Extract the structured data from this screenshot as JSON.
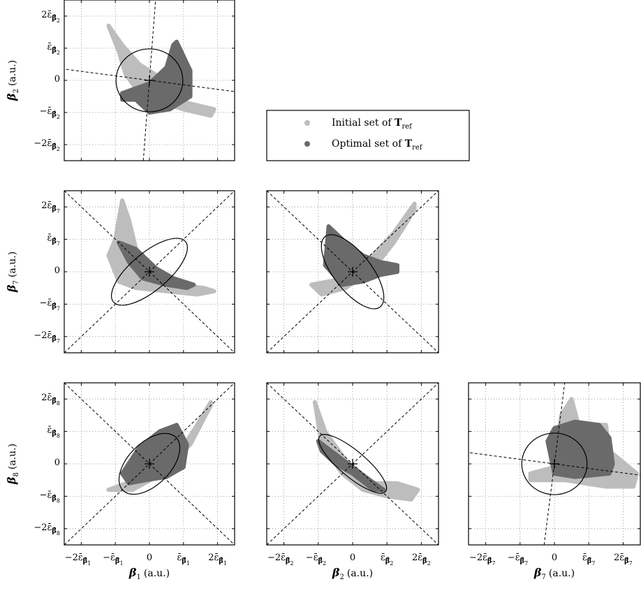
{
  "chart_data": [
    {
      "type": "scatter",
      "panel": "beta2-vs-beta1",
      "xlabel": "",
      "ylabel": "β2 (a.u.)",
      "x_ticks": [],
      "y_ticks": [
        "2ε̄β̂2",
        "ε̄β̂2",
        "0",
        "−ε̄β̂2",
        "−2ε̄β̂2"
      ],
      "xlim": [
        -2.5,
        2.5
      ],
      "ylim": [
        -2.5,
        2.5
      ],
      "series": [
        {
          "name": "Initial set of Tref",
          "color": "#bdbdbd",
          "x": [
            -1.2,
            -0.8,
            -0.3,
            0.3,
            0.8,
            1.1,
            1.9,
            1.8,
            1.0,
            0.4,
            -0.3,
            -0.7,
            -0.9,
            -1.2
          ],
          "y": [
            1.7,
            1.1,
            0.5,
            0.1,
            -0.4,
            -0.7,
            -0.9,
            -1.1,
            -0.9,
            -0.7,
            -0.4,
            0.2,
            0.9,
            1.7
          ]
        },
        {
          "name": "Optimal set of Tref",
          "color": "#6a6a6a",
          "x": [
            -0.8,
            0.0,
            0.5,
            0.7,
            0.8,
            1.2,
            1.2,
            0.6,
            0.0,
            -0.4,
            -0.8,
            -0.8
          ],
          "y": [
            -0.4,
            -0.1,
            0.4,
            1.1,
            1.2,
            0.3,
            -0.5,
            -0.9,
            -1.0,
            -0.6,
            -0.6,
            -0.4
          ]
        }
      ],
      "ellipse": {
        "cx": 0,
        "cy": 0,
        "rx": 0.98,
        "ry": 0.98,
        "angle": 0
      },
      "axes_lines": [
        [
          -5,
          0.7,
          5,
          -0.7
        ],
        [
          -0.18,
          -2.5,
          0.18,
          2.5
        ]
      ],
      "grid": true
    },
    {
      "type": "scatter",
      "panel": "beta7-vs-beta1",
      "xlabel": "",
      "ylabel": "β7 (a.u.)",
      "x_ticks": [],
      "y_ticks": [
        "2ε̄β̂7",
        "ε̄β̂7",
        "0",
        "−ε̄β̂7",
        "−2ε̄β̂7"
      ],
      "xlim": [
        -2.5,
        2.5
      ],
      "ylim": [
        -2.5,
        2.5
      ],
      "series": [
        {
          "name": "Initial set of Tref",
          "color": "#bdbdbd",
          "x": [
            -0.8,
            -0.6,
            -0.3,
            0.2,
            0.8,
            1.6,
            1.9,
            1.4,
            0.5,
            -0.4,
            -0.9,
            -1.2,
            -1.0,
            -0.8
          ],
          "y": [
            2.2,
            1.6,
            0.3,
            -0.4,
            -0.4,
            -0.5,
            -0.6,
            -0.7,
            -0.6,
            -0.5,
            -0.3,
            0.5,
            1.0,
            2.2
          ]
        },
        {
          "name": "Optimal set of Tref",
          "color": "#6a6a6a",
          "x": [
            -0.9,
            -0.4,
            0.2,
            0.7,
            1.3,
            1.1,
            0.5,
            -0.2,
            -0.6,
            -0.9
          ],
          "y": [
            0.9,
            0.7,
            0.1,
            -0.2,
            -0.4,
            -0.5,
            -0.4,
            -0.2,
            0.3,
            0.9
          ]
        }
      ],
      "ellipse": {
        "cx": 0,
        "cy": 0,
        "rx": 1.38,
        "ry": 0.58,
        "angle": -40
      },
      "axes_lines": [
        [
          -2.5,
          -2.5,
          2.5,
          2.5
        ],
        [
          -2.5,
          2.5,
          2.5,
          -2.5
        ]
      ],
      "grid": true
    },
    {
      "type": "scatter",
      "panel": "beta7-vs-beta2",
      "xlabel": "",
      "ylabel": "",
      "x_ticks": [],
      "y_ticks": [],
      "xlim": [
        -2.5,
        2.5
      ],
      "ylim": [
        -2.5,
        2.5
      ],
      "series": [
        {
          "name": "Initial set of Tref",
          "color": "#bdbdbd",
          "x": [
            -1.2,
            -0.2,
            0.5,
            1.2,
            1.8,
            1.8,
            1.2,
            0.6,
            -0.2,
            -0.9,
            -1.2
          ],
          "y": [
            -0.4,
            -0.2,
            0.4,
            1.2,
            2.1,
            1.9,
            0.9,
            0.1,
            -0.5,
            -0.7,
            -0.4
          ]
        },
        {
          "name": "Optimal set of Tref",
          "color": "#6a6a6a",
          "x": [
            -0.7,
            -0.2,
            0.3,
            0.8,
            1.3,
            1.3,
            0.8,
            0.3,
            -0.3,
            -0.8,
            -0.7
          ],
          "y": [
            1.4,
            0.9,
            0.5,
            0.3,
            0.2,
            0.0,
            -0.1,
            -0.3,
            -0.4,
            0.2,
            1.4
          ]
        }
      ],
      "ellipse": {
        "cx": 0,
        "cy": 0,
        "rx": 1.3,
        "ry": 0.58,
        "angle": 52
      },
      "axes_lines": [
        [
          -2.5,
          -2.5,
          2.5,
          2.5
        ],
        [
          -2.5,
          2.5,
          2.5,
          -2.5
        ]
      ],
      "grid": true
    },
    {
      "type": "scatter",
      "panel": "beta8-vs-beta1",
      "xlabel": "β1 (a.u.)",
      "ylabel": "β8 (a.u.)",
      "x_ticks": [
        "−2ε̄β̂1",
        "−ε̄β̂1",
        "0",
        "ε̄β̂1",
        "2ε̄β̂1"
      ],
      "y_ticks": [
        "2ε̄β̂8",
        "ε̄β̂8",
        "0",
        "−ε̄β̂8",
        "−2ε̄β̂8"
      ],
      "xlim": [
        -2.5,
        2.5
      ],
      "ylim": [
        -2.5,
        2.5
      ],
      "series": [
        {
          "name": "Initial set of Tref",
          "color": "#bdbdbd",
          "x": [
            -1.2,
            -0.4,
            0.4,
            1.2,
            1.8,
            1.8,
            1.4,
            0.8,
            0.2,
            -0.5,
            -1.2
          ],
          "y": [
            -0.8,
            -0.5,
            -0.2,
            0.6,
            1.8,
            1.9,
            1.2,
            0.2,
            -0.4,
            -0.8,
            -0.8
          ]
        },
        {
          "name": "Optimal set of Tref",
          "color": "#6a6a6a",
          "x": [
            -0.8,
            -0.3,
            0.3,
            0.8,
            1.1,
            1.0,
            0.5,
            -0.1,
            -0.6,
            -0.8
          ],
          "y": [
            -0.3,
            0.5,
            1.0,
            1.2,
            0.6,
            -0.1,
            -0.4,
            -0.5,
            -0.6,
            -0.3
          ]
        }
      ],
      "ellipse": {
        "cx": 0,
        "cy": 0,
        "rx": 1.1,
        "ry": 0.65,
        "angle": -45
      },
      "axes_lines": [
        [
          -2.5,
          -2.5,
          2.5,
          2.5
        ],
        [
          -2.5,
          2.5,
          2.5,
          -2.5
        ]
      ],
      "grid": true
    },
    {
      "type": "scatter",
      "panel": "beta8-vs-beta2",
      "xlabel": "β2 (a.u.)",
      "ylabel": "",
      "x_ticks": [
        "−2ε̄β̂2",
        "−ε̄β̂2",
        "0",
        "ε̄β̂2",
        "2ε̄β̂2"
      ],
      "y_ticks": [],
      "xlim": [
        -2.5,
        2.5
      ],
      "ylim": [
        -2.5,
        2.5
      ],
      "series": [
        {
          "name": "Initial set of Tref",
          "color": "#bdbdbd",
          "x": [
            -1.1,
            -0.8,
            -0.2,
            0.5,
            1.3,
            1.9,
            1.7,
            1.0,
            0.3,
            -0.3,
            -0.9,
            -1.1
          ],
          "y": [
            1.9,
            1.0,
            0.1,
            -0.6,
            -0.6,
            -0.8,
            -1.1,
            -1.0,
            -0.8,
            -0.3,
            0.6,
            1.9
          ]
        },
        {
          "name": "Optimal set of Tref",
          "color": "#6a6a6a",
          "x": [
            -1.0,
            -0.5,
            0.0,
            0.5,
            0.9,
            0.6,
            0.0,
            -0.5,
            -0.9,
            -1.0
          ],
          "y": [
            0.7,
            0.3,
            -0.1,
            -0.5,
            -0.8,
            -0.8,
            -0.3,
            0.0,
            0.4,
            0.7
          ]
        }
      ],
      "ellipse": {
        "cx": 0,
        "cy": 0,
        "rx": 1.25,
        "ry": 0.4,
        "angle": 40
      },
      "axes_lines": [
        [
          -2.5,
          -2.5,
          2.5,
          2.5
        ],
        [
          -2.5,
          2.5,
          2.5,
          -2.5
        ]
      ],
      "grid": true
    },
    {
      "type": "scatter",
      "panel": "beta8-vs-beta7",
      "xlabel": "β7 (a.u.)",
      "ylabel": "",
      "x_ticks": [
        "−2ε̄β̂7",
        "−ε̄β̂7",
        "0",
        "ε̄β̂7",
        "2ε̄β̂7"
      ],
      "y_ticks": [],
      "xlim": [
        -2.5,
        2.5
      ],
      "ylim": [
        -2.5,
        2.5
      ],
      "series": [
        {
          "name": "Initial set of Tref",
          "color": "#bdbdbd",
          "x": [
            -0.7,
            0.0,
            0.2,
            0.5,
            0.7,
            1.5,
            1.6,
            2.4,
            2.3,
            1.5,
            0.3,
            -0.7,
            -0.7
          ],
          "y": [
            -0.3,
            -0.1,
            1.5,
            2.0,
            1.2,
            1.2,
            0.4,
            -0.3,
            -0.7,
            -0.7,
            -0.5,
            -0.5,
            -0.3
          ]
        },
        {
          "name": "Optimal set of Tref",
          "color": "#6a6a6a",
          "x": [
            -0.2,
            0.0,
            0.6,
            1.3,
            1.6,
            1.7,
            1.6,
            0.6,
            0.0,
            -0.2
          ],
          "y": [
            0.7,
            1.1,
            1.3,
            1.2,
            0.8,
            0.0,
            -0.3,
            -0.4,
            -0.3,
            0.7
          ]
        }
      ],
      "ellipse": {
        "cx": 0,
        "cy": 0,
        "rx": 0.95,
        "ry": 0.95,
        "angle": 0
      },
      "axes_lines": [
        [
          -5,
          0.7,
          5,
          -0.7
        ],
        [
          -0.3,
          -2.5,
          0.3,
          2.5
        ]
      ],
      "grid": true
    }
  ],
  "legend": {
    "items": [
      {
        "label": "Initial set of ",
        "bold": "T",
        "sub": "ref",
        "color": "#bdbdbd"
      },
      {
        "label": "Optimal set of ",
        "bold": "T",
        "sub": "ref",
        "color": "#6a6a6a"
      }
    ]
  }
}
